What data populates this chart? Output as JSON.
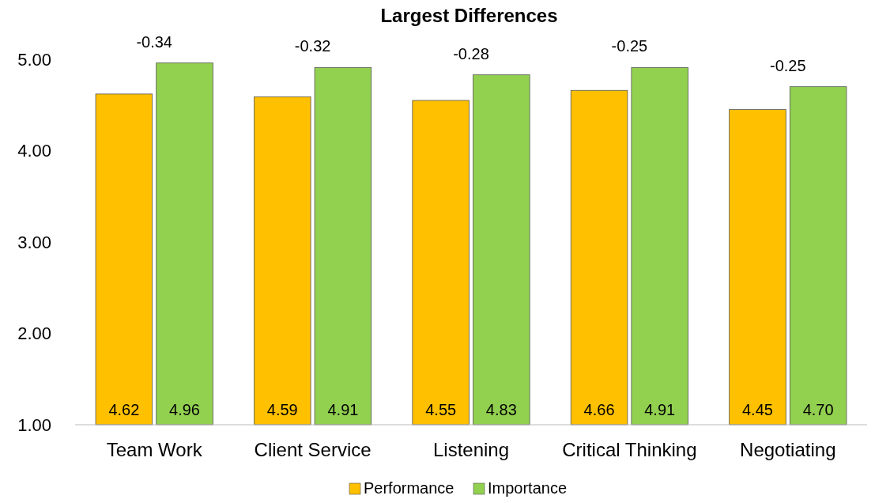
{
  "chart_data": {
    "type": "bar",
    "title": "Largest Differences",
    "categories": [
      "Team Work",
      "Client Service",
      "Listening",
      "Critical Thinking",
      "Negotiating"
    ],
    "series": [
      {
        "name": "Performance",
        "color": "#ffc000",
        "values": [
          4.62,
          4.59,
          4.55,
          4.66,
          4.45
        ],
        "value_labels": [
          "4.62",
          "4.59",
          "4.55",
          "4.66",
          "4.45"
        ]
      },
      {
        "name": "Importance",
        "color": "#92d050",
        "values": [
          4.96,
          4.91,
          4.83,
          4.91,
          4.7
        ],
        "value_labels": [
          "4.96",
          "4.91",
          "4.83",
          "4.91",
          "4.70"
        ]
      }
    ],
    "ylim": [
      1,
      5
    ],
    "yticks": [
      {
        "value": 1,
        "label": "1.00"
      },
      {
        "value": 2,
        "label": "2.00"
      },
      {
        "value": 3,
        "label": "3.00"
      },
      {
        "value": 4,
        "label": "4.00"
      },
      {
        "value": 5,
        "label": "5.00"
      }
    ],
    "annotations": [
      {
        "text": "-0.34",
        "x": "Team Work",
        "y": 4.96
      },
      {
        "text": "-0.32",
        "x": "Client Service",
        "y": 4.91
      },
      {
        "text": "-0.28",
        "x": "Listening",
        "y": 4.83
      },
      {
        "text": "-0.25",
        "x": "Critical Thinking",
        "y": 4.91
      },
      {
        "text": "-0.25",
        "x": "Negotiating",
        "y": 4.7
      }
    ],
    "legend": "bottom"
  }
}
